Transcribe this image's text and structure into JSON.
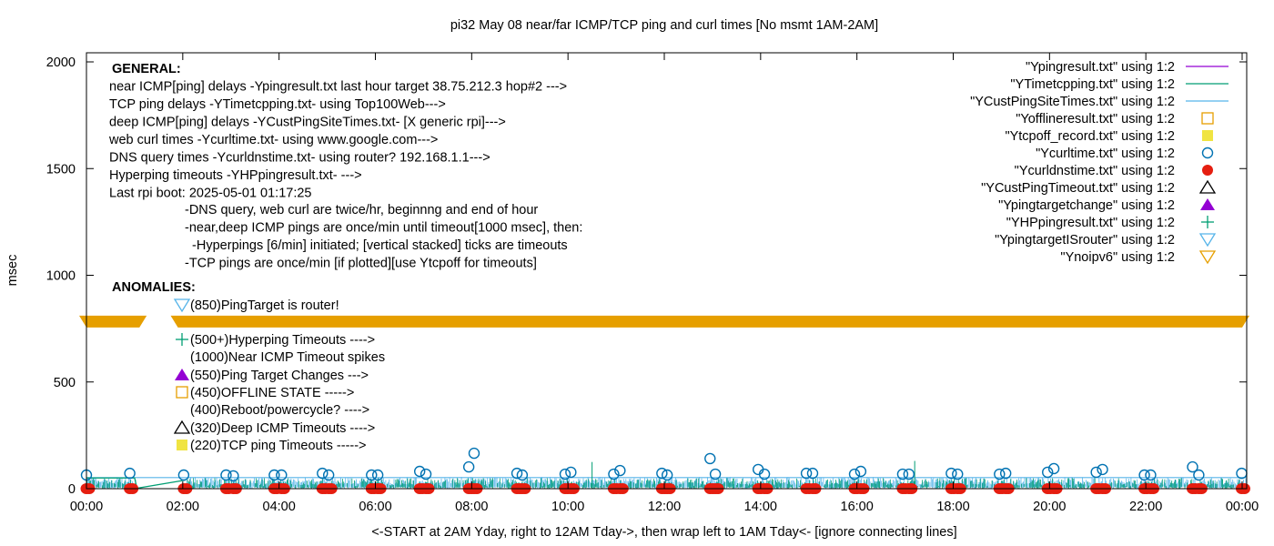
{
  "chart_data": {
    "type": "scatter",
    "title": "pi32 May 08  near/far ICMP/TCP ping and curl times [No msmt 1AM-2AM]",
    "xlabel": "<-START at 2AM Yday, right to 12AM Tday->, then wrap left to 1AM Tday<- [ignore connecting lines]",
    "ylabel": "msec",
    "xlim": [
      "00:00",
      "00:00"
    ],
    "ylim": [
      0,
      2000
    ],
    "x_ticks": [
      "00:00",
      "02:00",
      "04:00",
      "06:00",
      "08:00",
      "10:00",
      "12:00",
      "14:00",
      "16:00",
      "18:00",
      "20:00",
      "22:00",
      "00:00"
    ],
    "y_ticks": [
      0,
      500,
      1000,
      1500,
      2000
    ],
    "legend_position": "top-right",
    "legend": [
      {
        "label": "\"Ypingresult.txt\" using 1:2",
        "style": "line",
        "color": "#9400d3"
      },
      {
        "label": "\"YTimetcpping.txt\" using 1:2",
        "style": "line",
        "color": "#009e73"
      },
      {
        "label": "\"YCustPingSiteTimes.txt\" using 1:2",
        "style": "line",
        "color": "#56b4e9"
      },
      {
        "label": "\"Yofflineresult.txt\" using 1:2",
        "style": "open-square",
        "color": "#e69f00"
      },
      {
        "label": "\"Ytcpoff_record.txt\" using 1:2",
        "style": "filled-square",
        "color": "#f0e442"
      },
      {
        "label": "\"Ycurltime.txt\" using 1:2",
        "style": "open-circle",
        "color": "#0072b2"
      },
      {
        "label": "\"Ycurldnstime.txt\" using 1:2",
        "style": "filled-circle",
        "color": "#e51e10"
      },
      {
        "label": "\"YCustPingTimeout.txt\" using 1:2",
        "style": "open-triangle-up",
        "color": "#000000"
      },
      {
        "label": "\"Ypingtargetchange\" using 1:2",
        "style": "filled-triangle-up",
        "color": "#9400d3"
      },
      {
        "label": "\"YHPpingresult.txt\" using 1:2",
        "style": "plus",
        "color": "#009e73"
      },
      {
        "label": "\"YpingtargetISrouter\" using 1:2",
        "style": "open-triangle-down",
        "color": "#56b4e9"
      },
      {
        "label": "\"Ynoipv6\" using 1:2",
        "style": "open-triangle-down",
        "color": "#e69f00"
      }
    ],
    "series": [
      {
        "name": "\"Ycurltime.txt\" using 1:2",
        "x_hours": [
          0.0,
          0.9,
          2.02,
          2.9,
          3.05,
          3.9,
          4.05,
          4.9,
          5.03,
          5.92,
          6.05,
          6.92,
          7.05,
          7.94,
          8.05,
          8.94,
          9.05,
          9.94,
          10.06,
          10.95,
          11.08,
          11.95,
          12.06,
          12.95,
          13.06,
          13.95,
          14.08,
          14.95,
          15.08,
          15.95,
          16.08,
          16.95,
          17.08,
          17.96,
          18.09,
          18.96,
          19.09,
          19.96,
          20.09,
          20.97,
          21.1,
          21.97,
          22.1,
          22.97,
          23.1,
          23.99
        ],
        "y": [
          64,
          72,
          64,
          64,
          60,
          64,
          64,
          72,
          64,
          64,
          64,
          81,
          68,
          102,
          166,
          72,
          64,
          68,
          77,
          68,
          85,
          72,
          64,
          141,
          68,
          90,
          68,
          72,
          72,
          68,
          81,
          68,
          68,
          72,
          68,
          68,
          72,
          77,
          94,
          77,
          90,
          64,
          64,
          102,
          64,
          72
        ]
      },
      {
        "name": "\"Ycurldnstime.txt\" using 1:2",
        "x_hours": [
          0.0,
          0.9,
          2.02,
          2.9,
          3.05,
          3.9,
          4.05,
          4.9,
          5.03,
          5.92,
          6.05,
          6.92,
          7.05,
          7.94,
          8.05,
          8.94,
          9.05,
          9.94,
          10.06,
          10.95,
          11.08,
          11.95,
          12.06,
          12.95,
          13.06,
          13.95,
          14.08,
          14.95,
          15.08,
          15.95,
          16.08,
          16.95,
          17.08,
          17.96,
          18.09,
          18.96,
          19.09,
          19.96,
          20.09,
          20.97,
          21.1,
          21.97,
          22.1,
          22.97,
          23.1,
          23.99
        ],
        "y": [
          0,
          0,
          0,
          0,
          0,
          0,
          0,
          0,
          0,
          0,
          0,
          0,
          0,
          0,
          0,
          0,
          0,
          0,
          0,
          0,
          0,
          0,
          0,
          0,
          0,
          0,
          0,
          0,
          0,
          0,
          0,
          0,
          0,
          0,
          0,
          0,
          0,
          0,
          0,
          0,
          0,
          0,
          0,
          0,
          0,
          0
        ]
      },
      {
        "name": "\"Ynoipv6\" using 1:2",
        "x_ranges_hours": [
          [
            0.0,
            1.1
          ],
          [
            1.9,
            24.0
          ]
        ],
        "y": 785
      },
      {
        "name": "\"YCustPingSiteTimes.txt\" using 1:2",
        "y_range": [
          0,
          55
        ]
      },
      {
        "name": "\"YTimetcpping.txt\" using 1:2",
        "y_range": [
          0,
          60
        ],
        "spikes": [
          {
            "x_hours": 10.5,
            "y": 125
          },
          {
            "x_hours": 17.2,
            "y": 130
          }
        ]
      }
    ]
  },
  "annotations": {
    "general_heading": "GENERAL:",
    "general_lines": [
      "near ICMP[ping] delays -Ypingresult.txt last hour target 38.75.212.3 hop#2 --->",
      "TCP ping delays -YTimetcpping.txt- using Top100Web--->",
      "deep ICMP[ping] delays -YCustPingSiteTimes.txt- [X generic rpi]--->",
      "web curl times -Ycurltime.txt- using www.google.com--->",
      "DNS query times -Ycurldnstime.txt- using router? 192.168.1.1--->",
      "Hyperping timeouts -YHPpingresult.txt- --->",
      "Last rpi boot: 2025-05-01 01:17:25"
    ],
    "notes": [
      "-DNS query, web curl are twice/hr, beginnng and end of hour",
      "-near,deep ICMP pings are once/min until timeout[1000 msec], then:",
      "  -Hyperpings [6/min] initiated; [vertical stacked] ticks are timeouts",
      "-TCP pings are once/min [if plotted][use Ytcpoff for timeouts]"
    ],
    "anomalies_heading": "ANOMALIES:",
    "anomalies": [
      {
        "text": "(850)PingTarget is router!",
        "symbol": "open-triangle-down",
        "color": "#56b4e9"
      },
      {
        "text": "(500+)Hyperping Timeouts ---->",
        "symbol": "plus",
        "color": "#009e73"
      },
      {
        "text": "(1000)Near ICMP Timeout spikes",
        "symbol": "none",
        "color": ""
      },
      {
        "text": "(550)Ping Target Changes --->",
        "symbol": "filled-triangle-up",
        "color": "#9400d3"
      },
      {
        "text": "(450)OFFLINE STATE ----->",
        "symbol": "open-square",
        "color": "#e69f00"
      },
      {
        "text": "(400)Reboot/powercycle? ---->",
        "symbol": "none",
        "color": ""
      },
      {
        "text": "(320)Deep ICMP Timeouts ---->",
        "symbol": "open-triangle-up",
        "color": "#000000"
      },
      {
        "text": "(220)TCP ping Timeouts ----->",
        "symbol": "filled-square",
        "color": "#f0e442"
      }
    ]
  }
}
